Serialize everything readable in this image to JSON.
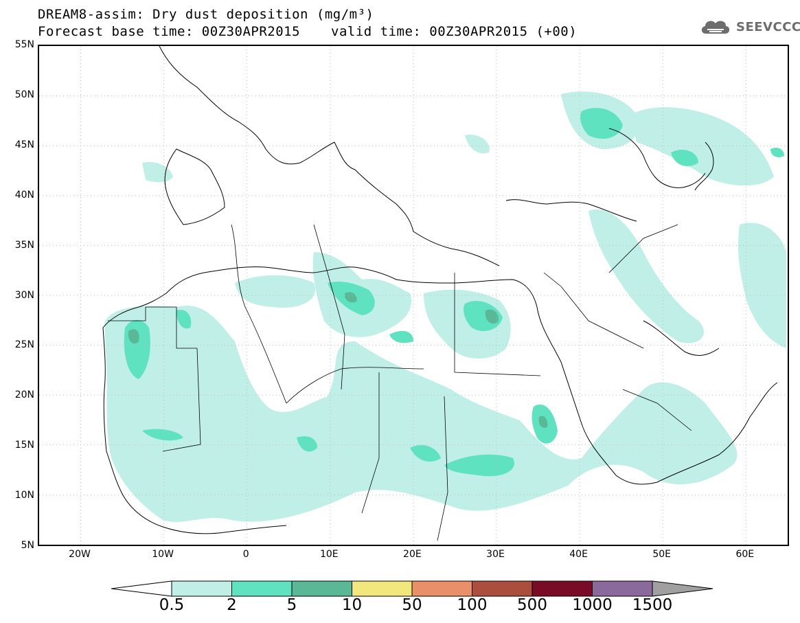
{
  "header": {
    "title": "DREAM8-assim: Dry dust deposition (mg/m³)",
    "base_time": "Forecast base time: 00Z30APR2015",
    "valid_time": "valid time: 00Z30APR2015 (+00)"
  },
  "logo": {
    "text": "SEEVCCC",
    "icon": "cloud-logo-icon"
  },
  "map": {
    "lat_labels": [
      "55N",
      "50N",
      "45N",
      "40N",
      "35N",
      "30N",
      "25N",
      "20N",
      "15N",
      "10N",
      "5N"
    ],
    "lon_labels": [
      "20W",
      "10W",
      "0",
      "10E",
      "20E",
      "30E",
      "40E",
      "50E",
      "60E"
    ],
    "extent": {
      "lon": [
        -25,
        65
      ],
      "lat": [
        5,
        55
      ]
    }
  },
  "colorbar": {
    "labels": [
      "0.5",
      "2",
      "5",
      "10",
      "50",
      "100",
      "500",
      "1000",
      "1500"
    ],
    "colors": [
      "#c0efe8",
      "#5ee2c0",
      "#5bb896",
      "#f2e77d",
      "#ea9068",
      "#ab4e3d",
      "#7a0b27",
      "#8a6a9c"
    ],
    "under_color": "#ffffff",
    "over_color": "#a0a0a0"
  }
}
